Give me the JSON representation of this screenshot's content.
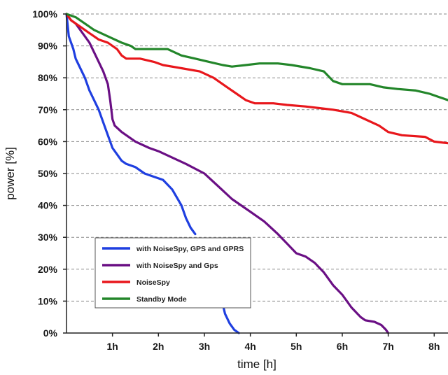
{
  "chart_data": {
    "type": "line",
    "title": "",
    "xlabel": "time [h]",
    "ylabel": "power [%]",
    "xlim": [
      0,
      8.3
    ],
    "ylim": [
      0,
      100
    ],
    "x_ticks": [
      {
        "value": 1,
        "label": "1h"
      },
      {
        "value": 2,
        "label": "2h"
      },
      {
        "value": 3,
        "label": "3h"
      },
      {
        "value": 4,
        "label": "4h"
      },
      {
        "value": 5,
        "label": "5h"
      },
      {
        "value": 6,
        "label": "6h"
      },
      {
        "value": 7,
        "label": "7h"
      },
      {
        "value": 8,
        "label": "8h"
      }
    ],
    "y_ticks": [
      {
        "value": 0,
        "label": "0%"
      },
      {
        "value": 10,
        "label": "10%"
      },
      {
        "value": 20,
        "label": "20%"
      },
      {
        "value": 30,
        "label": "30%"
      },
      {
        "value": 40,
        "label": "40%"
      },
      {
        "value": 50,
        "label": "50%"
      },
      {
        "value": 60,
        "label": "60%"
      },
      {
        "value": 70,
        "label": "70%"
      },
      {
        "value": 80,
        "label": "80%"
      },
      {
        "value": 90,
        "label": "90%"
      },
      {
        "value": 100,
        "label": "100%"
      }
    ],
    "grid": "horizontal dashed",
    "legend_position": "bottom-left",
    "series": [
      {
        "name": "with NoiseSpy, GPS and GPRS",
        "color": "#1f3fe0",
        "points": [
          [
            0,
            100
          ],
          [
            0.05,
            93
          ],
          [
            0.15,
            89
          ],
          [
            0.2,
            86
          ],
          [
            0.3,
            83
          ],
          [
            0.4,
            80
          ],
          [
            0.5,
            76
          ],
          [
            0.6,
            73
          ],
          [
            0.7,
            70
          ],
          [
            0.8,
            66
          ],
          [
            0.9,
            62
          ],
          [
            1.0,
            58
          ],
          [
            1.1,
            56
          ],
          [
            1.2,
            54
          ],
          [
            1.3,
            53
          ],
          [
            1.5,
            52
          ],
          [
            1.7,
            50
          ],
          [
            1.9,
            49
          ],
          [
            2.1,
            48
          ],
          [
            2.3,
            45
          ],
          [
            2.5,
            40
          ],
          [
            2.6,
            36
          ],
          [
            2.7,
            33
          ],
          [
            2.8,
            31
          ]
        ]
      },
      {
        "name": "with NoiseSpy, GPS and GPRS",
        "color": "#1f3fe0",
        "points": [
          [
            3.4,
            9
          ],
          [
            3.45,
            6
          ],
          [
            3.55,
            3
          ],
          [
            3.65,
            1
          ],
          [
            3.75,
            0
          ]
        ]
      },
      {
        "name": "with NoiseSpy and Gps",
        "color": "#6a0f84",
        "points": [
          [
            0,
            100
          ],
          [
            0.1,
            98
          ],
          [
            0.2,
            97
          ],
          [
            0.3,
            95
          ],
          [
            0.4,
            93
          ],
          [
            0.5,
            91
          ],
          [
            0.6,
            88
          ],
          [
            0.7,
            85
          ],
          [
            0.8,
            82
          ],
          [
            0.9,
            78
          ],
          [
            0.95,
            73
          ],
          [
            1.0,
            67
          ],
          [
            1.05,
            65
          ],
          [
            1.2,
            63
          ],
          [
            1.5,
            60
          ],
          [
            1.8,
            58
          ],
          [
            2.0,
            57
          ],
          [
            2.3,
            55
          ],
          [
            2.6,
            53
          ],
          [
            3.0,
            50
          ],
          [
            3.3,
            46
          ],
          [
            3.6,
            42
          ],
          [
            4.0,
            38
          ],
          [
            4.3,
            35
          ],
          [
            4.6,
            31
          ],
          [
            4.8,
            28
          ],
          [
            5.0,
            25
          ],
          [
            5.2,
            24
          ],
          [
            5.4,
            22
          ],
          [
            5.6,
            19
          ],
          [
            5.8,
            15
          ],
          [
            6.0,
            12
          ],
          [
            6.2,
            8
          ],
          [
            6.4,
            5
          ],
          [
            6.5,
            4
          ],
          [
            6.7,
            3.5
          ],
          [
            6.85,
            2.5
          ],
          [
            6.95,
            1
          ],
          [
            7.0,
            0
          ]
        ]
      },
      {
        "name": "NoiseSpy",
        "color": "#e8171c",
        "points": [
          [
            0,
            100
          ],
          [
            0.1,
            98
          ],
          [
            0.3,
            96
          ],
          [
            0.5,
            94
          ],
          [
            0.7,
            92
          ],
          [
            0.9,
            91
          ],
          [
            1.1,
            89
          ],
          [
            1.2,
            87
          ],
          [
            1.3,
            86
          ],
          [
            1.6,
            86
          ],
          [
            1.9,
            85
          ],
          [
            2.1,
            84
          ],
          [
            2.5,
            83
          ],
          [
            2.9,
            82
          ],
          [
            3.2,
            80
          ],
          [
            3.5,
            77
          ],
          [
            3.7,
            75
          ],
          [
            3.9,
            73
          ],
          [
            4.1,
            72
          ],
          [
            4.5,
            72
          ],
          [
            4.8,
            71.5
          ],
          [
            5.2,
            71
          ],
          [
            5.5,
            70.5
          ],
          [
            5.8,
            70
          ],
          [
            6.2,
            69
          ],
          [
            6.5,
            67
          ],
          [
            6.8,
            65
          ],
          [
            7.0,
            63
          ],
          [
            7.3,
            62
          ],
          [
            7.8,
            61.5
          ],
          [
            8.0,
            60
          ],
          [
            8.3,
            59.5
          ]
        ]
      },
      {
        "name": "Standby Mode",
        "color": "#23862a",
        "points": [
          [
            0,
            100
          ],
          [
            0.2,
            99
          ],
          [
            0.4,
            97
          ],
          [
            0.6,
            95
          ],
          [
            0.9,
            93
          ],
          [
            1.2,
            91
          ],
          [
            1.4,
            90
          ],
          [
            1.5,
            89
          ],
          [
            2.2,
            89
          ],
          [
            2.5,
            87
          ],
          [
            2.8,
            86
          ],
          [
            3.1,
            85
          ],
          [
            3.4,
            84
          ],
          [
            3.6,
            83.5
          ],
          [
            3.9,
            84
          ],
          [
            4.2,
            84.5
          ],
          [
            4.6,
            84.5
          ],
          [
            4.9,
            84
          ],
          [
            5.3,
            83
          ],
          [
            5.6,
            82
          ],
          [
            5.8,
            79
          ],
          [
            6.0,
            78
          ],
          [
            6.6,
            78
          ],
          [
            6.9,
            77
          ],
          [
            7.2,
            76.5
          ],
          [
            7.6,
            76
          ],
          [
            7.9,
            75
          ],
          [
            8.1,
            74
          ],
          [
            8.3,
            73
          ]
        ]
      }
    ]
  },
  "legend": {
    "entries": [
      {
        "label": "with NoiseSpy, GPS and GPRS",
        "color": "#1f3fe0"
      },
      {
        "label": "with NoiseSpy and Gps",
        "color": "#6a0f84"
      },
      {
        "label": "NoiseSpy",
        "color": "#e8171c"
      },
      {
        "label": "Standby Mode",
        "color": "#23862a"
      }
    ]
  }
}
